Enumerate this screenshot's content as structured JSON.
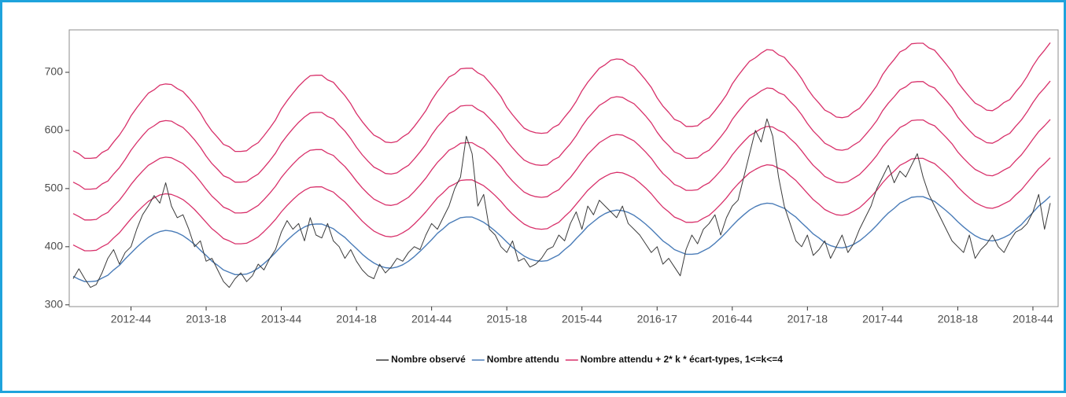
{
  "chart_data": {
    "type": "line",
    "categories": [
      null,
      null,
      null,
      null,
      null,
      null,
      null,
      null,
      null,
      null,
      "2012-44",
      null,
      null,
      null,
      null,
      null,
      null,
      null,
      null,
      null,
      null,
      null,
      null,
      "2013-18",
      null,
      null,
      null,
      null,
      null,
      null,
      null,
      null,
      null,
      null,
      null,
      null,
      "2013-44",
      null,
      null,
      null,
      null,
      null,
      null,
      null,
      null,
      null,
      null,
      null,
      null,
      "2014-18",
      null,
      null,
      null,
      null,
      null,
      null,
      null,
      null,
      null,
      null,
      null,
      null,
      "2014-44",
      null,
      null,
      null,
      null,
      null,
      null,
      null,
      null,
      null,
      null,
      null,
      null,
      "2015-18",
      null,
      null,
      null,
      null,
      null,
      null,
      null,
      null,
      null,
      null,
      null,
      null,
      "2015-44",
      null,
      null,
      null,
      null,
      null,
      null,
      null,
      null,
      null,
      null,
      null,
      null,
      "2016-17",
      null,
      null,
      null,
      null,
      null,
      null,
      null,
      null,
      null,
      null,
      null,
      null,
      "2016-44",
      null,
      null,
      null,
      null,
      null,
      null,
      null,
      null,
      null,
      null,
      null,
      null,
      "2017-18",
      null,
      null,
      null,
      null,
      null,
      null,
      null,
      null,
      null,
      null,
      null,
      null,
      "2017-44",
      null,
      null,
      null,
      null,
      null,
      null,
      null,
      null,
      null,
      null,
      null,
      null,
      "2018-18",
      null,
      null,
      null,
      null,
      null,
      null,
      null,
      null,
      null,
      null,
      null,
      null,
      "2018-44",
      null,
      null,
      null
    ],
    "series": [
      {
        "name": "Nombre observé",
        "color": "#3a3a3a",
        "values": [
          345,
          362,
          345,
          330,
          335,
          355,
          380,
          395,
          370,
          390,
          400,
          430,
          455,
          470,
          488,
          475,
          510,
          470,
          450,
          455,
          430,
          400,
          410,
          375,
          380,
          360,
          340,
          330,
          345,
          355,
          340,
          350,
          370,
          360,
          380,
          395,
          425,
          445,
          430,
          440,
          410,
          450,
          420,
          415,
          440,
          410,
          400,
          380,
          395,
          375,
          360,
          350,
          345,
          370,
          355,
          365,
          380,
          375,
          390,
          400,
          395,
          420,
          440,
          430,
          450,
          470,
          500,
          520,
          590,
          560,
          470,
          490,
          430,
          420,
          400,
          390,
          410,
          375,
          380,
          365,
          370,
          380,
          395,
          400,
          420,
          410,
          440,
          460,
          430,
          470,
          455,
          480,
          470,
          460,
          450,
          470,
          440,
          430,
          420,
          405,
          390,
          400,
          370,
          380,
          365,
          350,
          395,
          420,
          405,
          430,
          440,
          455,
          420,
          450,
          470,
          480,
          520,
          560,
          600,
          580,
          620,
          590,
          520,
          470,
          440,
          410,
          400,
          420,
          385,
          395,
          410,
          380,
          400,
          420,
          390,
          405,
          430,
          450,
          470,
          500,
          520,
          540,
          510,
          530,
          520,
          540,
          560,
          520,
          490,
          470,
          450,
          430,
          410,
          400,
          390,
          420,
          380,
          395,
          405,
          420,
          400,
          390,
          410,
          425,
          430,
          440,
          460,
          490,
          430,
          475
        ]
      },
      {
        "name": "Nombre attendu",
        "color": "#4a7cb8",
        "values": [
          349,
          344,
          340,
          340,
          341,
          346,
          351,
          360,
          368,
          379,
          389,
          399,
          408,
          416,
          422,
          426,
          428,
          427,
          424,
          419,
          412,
          404,
          394,
          385,
          375,
          368,
          360,
          356,
          352,
          352,
          353,
          357,
          363,
          371,
          380,
          390,
          401,
          411,
          420,
          428,
          434,
          438,
          439,
          439,
          435,
          431,
          423,
          416,
          406,
          397,
          387,
          379,
          372,
          367,
          364,
          363,
          365,
          369,
          375,
          383,
          392,
          402,
          412,
          423,
          431,
          440,
          445,
          450,
          451,
          451,
          447,
          442,
          435,
          427,
          418,
          408,
          399,
          391,
          384,
          379,
          376,
          375,
          376,
          381,
          386,
          395,
          403,
          414,
          424,
          435,
          443,
          451,
          457,
          461,
          463,
          462,
          459,
          454,
          447,
          439,
          430,
          420,
          410,
          403,
          395,
          391,
          387,
          387,
          388,
          393,
          398,
          406,
          415,
          425,
          436,
          446,
          455,
          463,
          469,
          473,
          475,
          474,
          470,
          466,
          458,
          451,
          441,
          432,
          422,
          415,
          407,
          402,
          399,
          398,
          400,
          404,
          410,
          418,
          427,
          437,
          448,
          458,
          466,
          475,
          480,
          485,
          486,
          486,
          482,
          478,
          470,
          462,
          453,
          443,
          434,
          426,
          419,
          414,
          411,
          410,
          412,
          416,
          421,
          430,
          438,
          449,
          459,
          470,
          478,
          487
        ]
      },
      {
        "name": "Nombre attendu + 2* k * écart-types, 1<=k<=4",
        "color": "#d8306a",
        "lines": [
          [
            403,
            398,
            393,
            393,
            394,
            400,
            405,
            415,
            424,
            436,
            448,
            459,
            469,
            478,
            484,
            489,
            491,
            490,
            486,
            481,
            473,
            464,
            453,
            442,
            431,
            423,
            414,
            410,
            405,
            405,
            406,
            411,
            417,
            426,
            436,
            447,
            460,
            471,
            481,
            490,
            497,
            502,
            503,
            503,
            498,
            494,
            485,
            477,
            466,
            455,
            444,
            435,
            427,
            422,
            418,
            417,
            419,
            424,
            430,
            439,
            449,
            460,
            472,
            484,
            493,
            503,
            508,
            514,
            515,
            515,
            510,
            505,
            497,
            488,
            478,
            466,
            456,
            447,
            439,
            434,
            431,
            430,
            431,
            437,
            442,
            452,
            461,
            473,
            485,
            497,
            506,
            515,
            521,
            526,
            528,
            527,
            523,
            518,
            510,
            501,
            491,
            479,
            468,
            460,
            451,
            447,
            442,
            442,
            443,
            449,
            454,
            463,
            473,
            484,
            497,
            508,
            518,
            527,
            533,
            538,
            541,
            540,
            535,
            531,
            522,
            514,
            503,
            492,
            481,
            473,
            464,
            459,
            455,
            454,
            456,
            461,
            467,
            476,
            486,
            497,
            510,
            521,
            530,
            540,
            545,
            551,
            552,
            552,
            547,
            543,
            534,
            525,
            515,
            503,
            493,
            484,
            476,
            471,
            467,
            466,
            469,
            474,
            479,
            489,
            498,
            510,
            522,
            534,
            543,
            553
          ],
          [
            457,
            452,
            446,
            446,
            447,
            454,
            459,
            470,
            480,
            493,
            507,
            519,
            530,
            540,
            546,
            552,
            554,
            553,
            548,
            543,
            534,
            524,
            512,
            499,
            487,
            478,
            468,
            464,
            458,
            458,
            459,
            465,
            471,
            481,
            492,
            504,
            519,
            531,
            542,
            552,
            560,
            566,
            567,
            567,
            561,
            557,
            547,
            538,
            526,
            513,
            501,
            491,
            482,
            477,
            472,
            471,
            473,
            479,
            485,
            495,
            506,
            518,
            532,
            545,
            555,
            566,
            571,
            578,
            579,
            579,
            573,
            568,
            559,
            549,
            538,
            524,
            513,
            503,
            494,
            489,
            486,
            485,
            486,
            493,
            498,
            509,
            519,
            532,
            546,
            559,
            569,
            579,
            585,
            591,
            593,
            592,
            587,
            582,
            573,
            563,
            552,
            538,
            526,
            517,
            507,
            503,
            497,
            497,
            498,
            505,
            510,
            520,
            531,
            543,
            558,
            570,
            581,
            591,
            597,
            603,
            607,
            606,
            600,
            596,
            586,
            577,
            565,
            552,
            540,
            531,
            521,
            516,
            511,
            510,
            512,
            518,
            524,
            534,
            545,
            557,
            572,
            584,
            594,
            605,
            610,
            617,
            618,
            618,
            612,
            608,
            598,
            588,
            577,
            563,
            552,
            542,
            533,
            528,
            523,
            522,
            526,
            532,
            537,
            548,
            558,
            571,
            585,
            598,
            608,
            619
          ],
          [
            511,
            506,
            499,
            499,
            500,
            508,
            513,
            525,
            536,
            550,
            566,
            579,
            591,
            602,
            608,
            615,
            617,
            616,
            610,
            605,
            595,
            584,
            571,
            556,
            543,
            533,
            522,
            518,
            511,
            511,
            512,
            519,
            525,
            536,
            548,
            561,
            578,
            591,
            603,
            614,
            623,
            630,
            631,
            631,
            624,
            620,
            609,
            599,
            586,
            571,
            558,
            547,
            537,
            532,
            526,
            525,
            527,
            534,
            540,
            551,
            563,
            576,
            592,
            606,
            617,
            629,
            634,
            642,
            643,
            643,
            636,
            631,
            621,
            610,
            598,
            582,
            570,
            559,
            549,
            544,
            541,
            540,
            541,
            549,
            554,
            566,
            577,
            591,
            607,
            621,
            632,
            643,
            649,
            656,
            658,
            657,
            651,
            646,
            636,
            625,
            613,
            597,
            584,
            574,
            563,
            559,
            552,
            552,
            553,
            561,
            566,
            577,
            589,
            602,
            619,
            632,
            644,
            655,
            661,
            668,
            673,
            672,
            665,
            661,
            650,
            640,
            627,
            612,
            599,
            589,
            578,
            573,
            567,
            566,
            568,
            575,
            581,
            592,
            604,
            617,
            634,
            647,
            658,
            670,
            675,
            683,
            684,
            684,
            677,
            673,
            662,
            651,
            639,
            623,
            611,
            600,
            590,
            585,
            579,
            578,
            583,
            590,
            595,
            607,
            618,
            632,
            648,
            662,
            673,
            685
          ],
          [
            565,
            560,
            552,
            552,
            553,
            562,
            567,
            580,
            592,
            607,
            625,
            639,
            652,
            664,
            670,
            678,
            680,
            679,
            672,
            667,
            656,
            644,
            630,
            613,
            599,
            588,
            576,
            572,
            564,
            564,
            565,
            573,
            579,
            591,
            604,
            618,
            637,
            651,
            664,
            676,
            686,
            694,
            695,
            695,
            687,
            683,
            671,
            660,
            646,
            629,
            615,
            603,
            592,
            587,
            580,
            579,
            581,
            589,
            595,
            607,
            620,
            634,
            652,
            667,
            679,
            692,
            697,
            706,
            707,
            707,
            699,
            694,
            683,
            671,
            658,
            640,
            627,
            615,
            604,
            599,
            596,
            595,
            596,
            605,
            610,
            623,
            635,
            650,
            668,
            683,
            695,
            707,
            713,
            721,
            723,
            722,
            715,
            710,
            699,
            687,
            674,
            656,
            642,
            631,
            619,
            615,
            607,
            607,
            608,
            617,
            622,
            634,
            647,
            661,
            680,
            694,
            707,
            719,
            725,
            733,
            739,
            738,
            730,
            726,
            714,
            703,
            689,
            672,
            658,
            647,
            635,
            630,
            623,
            622,
            624,
            632,
            638,
            650,
            663,
            677,
            696,
            710,
            722,
            735,
            740,
            749,
            750,
            750,
            742,
            738,
            726,
            714,
            701,
            683,
            670,
            658,
            647,
            642,
            635,
            634,
            640,
            648,
            653,
            666,
            678,
            693,
            711,
            726,
            738,
            751
          ]
        ]
      }
    ],
    "ylim": [
      297,
      773
    ],
    "yticks": [
      300,
      400,
      500,
      600,
      700
    ]
  }
}
